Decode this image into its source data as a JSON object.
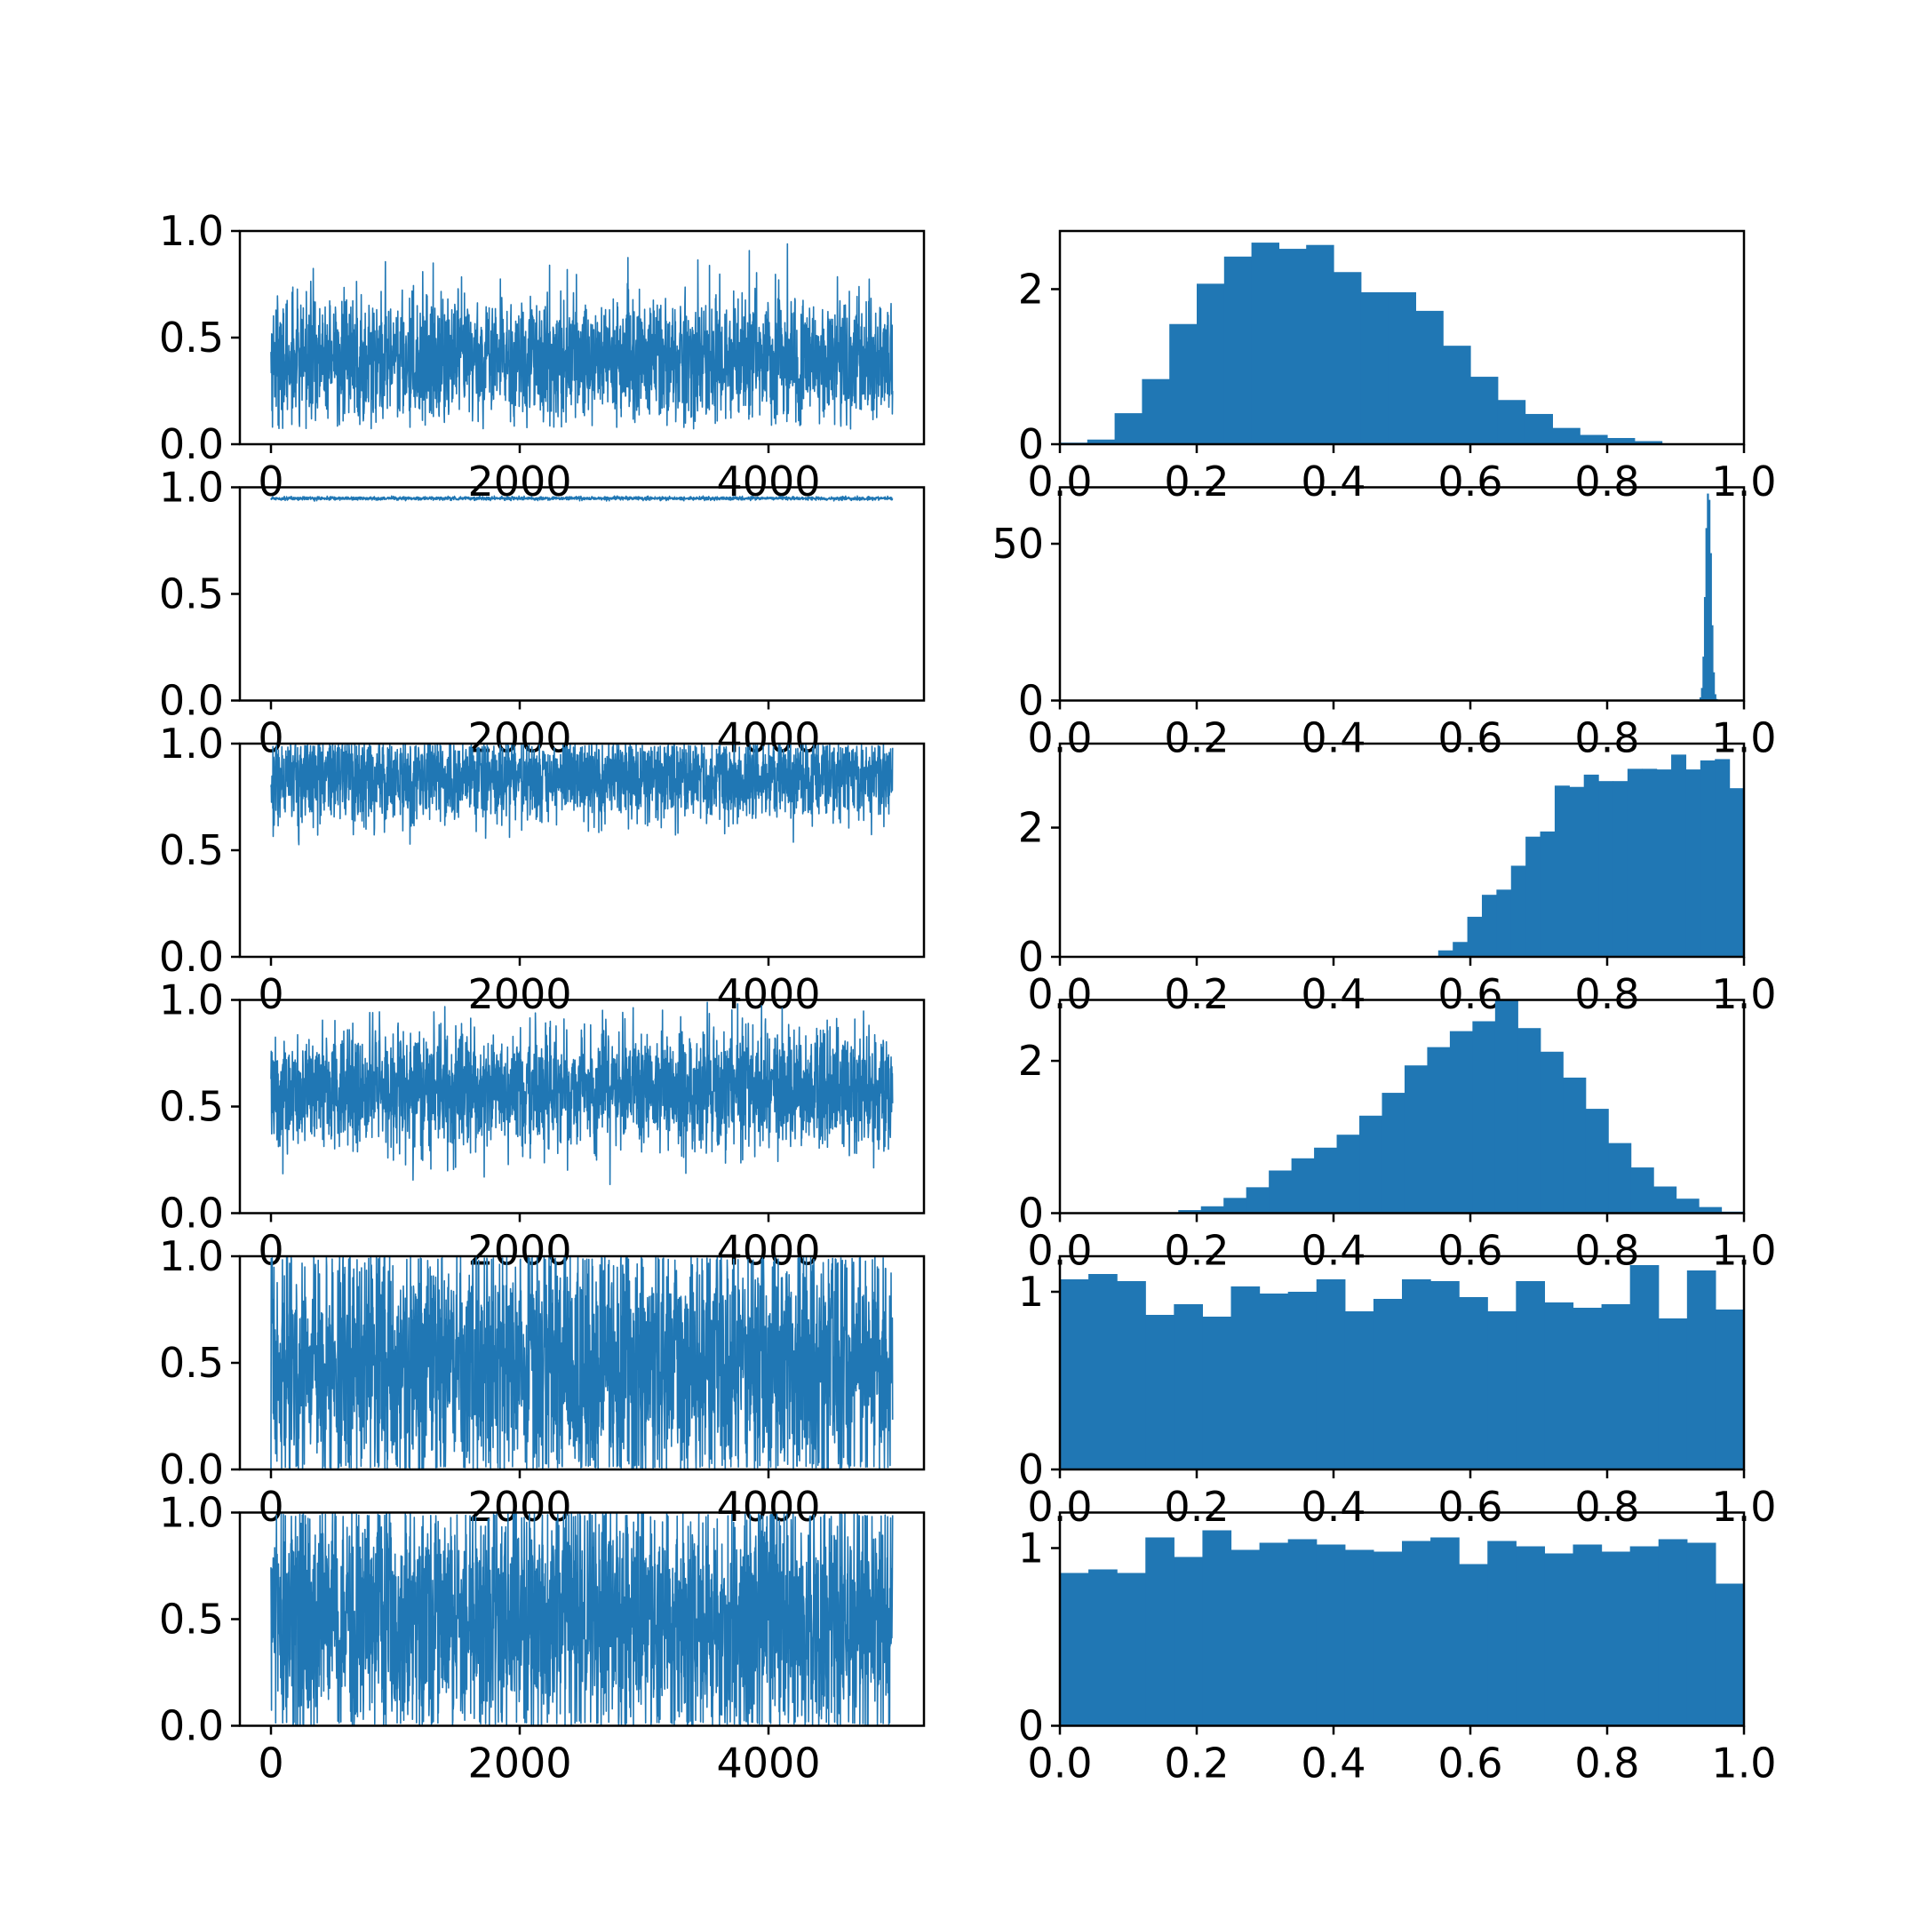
{
  "colors": {
    "series": "#2077b4",
    "axes": "#000000",
    "background": "#ffffff"
  },
  "chart_data": [
    {
      "type": "line",
      "panel": "trace-1",
      "xlim": [
        -250,
        5250
      ],
      "ylim": [
        0,
        1
      ],
      "xticks": [
        0,
        2000,
        4000
      ],
      "xtick_labels": [
        "0",
        "2000",
        "4000"
      ],
      "yticks": [
        0,
        0.5,
        1.0
      ],
      "ytick_labels": [
        "0.0",
        "0.5",
        "1.0"
      ],
      "n_samples": 5000,
      "band": [
        0.07,
        0.22,
        0.4,
        0.62,
        0.99
      ],
      "sd": 0.15
    },
    {
      "type": "bar",
      "panel": "hist-1",
      "xlim": [
        0,
        1
      ],
      "ylim": [
        0,
        2.75
      ],
      "xticks": [
        0,
        0.2,
        0.4,
        0.6,
        0.8,
        1.0
      ],
      "xtick_labels": [
        "0.0",
        "0.2",
        "0.4",
        "0.6",
        "0.8",
        "1.0"
      ],
      "yticks": [
        0,
        2
      ],
      "ytick_labels": [
        "0",
        "2"
      ],
      "bin_range": [
        0.0,
        0.92
      ],
      "values": [
        0.02,
        0.06,
        0.4,
        0.84,
        1.55,
        2.07,
        2.42,
        2.6,
        2.52,
        2.57,
        2.22,
        1.96,
        1.96,
        1.72,
        1.27,
        0.87,
        0.57,
        0.39,
        0.21,
        0.12,
        0.08,
        0.04,
        0.01
      ]
    },
    {
      "type": "line",
      "panel": "trace-2",
      "xlim": [
        -250,
        5250
      ],
      "ylim": [
        0,
        1
      ],
      "xticks": [
        0,
        2000,
        4000
      ],
      "xtick_labels": [
        "0",
        "2000",
        "4000"
      ],
      "yticks": [
        0,
        0.5,
        1.0
      ],
      "ytick_labels": [
        "0.0",
        "0.5",
        "1.0"
      ],
      "n_samples": 5000,
      "band": [
        0.935,
        0.943,
        0.948,
        0.953,
        0.96
      ],
      "sd": 0.004
    },
    {
      "type": "bar",
      "panel": "hist-2",
      "xlim": [
        0,
        1
      ],
      "ylim": [
        0,
        68
      ],
      "xticks": [
        0,
        0.2,
        0.4,
        0.6,
        0.8,
        1.0
      ],
      "xtick_labels": [
        "0.0",
        "0.2",
        "0.4",
        "0.6",
        "0.8",
        "1.0"
      ],
      "yticks": [
        0,
        50
      ],
      "ytick_labels": [
        "0",
        "50"
      ],
      "bin_range": [
        0.935,
        0.961
      ],
      "values": [
        1,
        4,
        14,
        33,
        55,
        66,
        64,
        47,
        24,
        9,
        2,
        0.5
      ]
    },
    {
      "type": "line",
      "panel": "trace-3",
      "xlim": [
        -250,
        5250
      ],
      "ylim": [
        0,
        1
      ],
      "xticks": [
        0,
        2000,
        4000
      ],
      "xtick_labels": [
        "0",
        "2000",
        "4000"
      ],
      "yticks": [
        0,
        0.5,
        1.0
      ],
      "ytick_labels": [
        "0.0",
        "0.5",
        "1.0"
      ],
      "n_samples": 5000,
      "band": [
        0.52,
        0.62,
        0.84,
        0.98,
        1.0
      ],
      "sd": 0.1
    },
    {
      "type": "bar",
      "panel": "hist-3",
      "xlim": [
        0,
        1
      ],
      "ylim": [
        0,
        3.3
      ],
      "xticks": [
        0,
        0.2,
        0.4,
        0.6,
        0.8,
        1.0
      ],
      "xtick_labels": [
        "0.0",
        "0.2",
        "0.4",
        "0.6",
        "0.8",
        "1.0"
      ],
      "yticks": [
        0,
        2
      ],
      "ytick_labels": [
        "0",
        "2"
      ],
      "bin_range": [
        0.553,
        1.0
      ],
      "values": [
        0.1,
        0.23,
        0.62,
        0.96,
        1.04,
        1.41,
        1.86,
        1.94,
        2.65,
        2.63,
        2.82,
        2.72,
        2.72,
        2.91,
        2.91,
        2.9,
        3.13,
        2.9,
        3.04,
        3.06,
        2.61
      ]
    },
    {
      "type": "line",
      "panel": "trace-4",
      "xlim": [
        -250,
        5250
      ],
      "ylim": [
        0,
        1
      ],
      "xticks": [
        0,
        2000,
        4000
      ],
      "xtick_labels": [
        "0",
        "2000",
        "4000"
      ],
      "yticks": [
        0,
        0.5,
        1.0
      ],
      "ytick_labels": [
        "0.0",
        "0.5",
        "1.0"
      ],
      "n_samples": 5000,
      "band": [
        0.12,
        0.32,
        0.58,
        0.83,
        0.99
      ],
      "sd": 0.14
    },
    {
      "type": "bar",
      "panel": "hist-4",
      "xlim": [
        0,
        1
      ],
      "ylim": [
        0,
        2.8
      ],
      "xticks": [
        0,
        0.2,
        0.4,
        0.6,
        0.8,
        1.0
      ],
      "xtick_labels": [
        "0.0",
        "0.2",
        "0.4",
        "0.6",
        "0.8",
        "1.0"
      ],
      "yticks": [
        0,
        2
      ],
      "ytick_labels": [
        "0",
        "2"
      ],
      "bin_range": [
        0.14,
        1.0
      ],
      "values": [
        0.01,
        0.04,
        0.09,
        0.2,
        0.34,
        0.56,
        0.72,
        0.86,
        1.03,
        1.28,
        1.58,
        1.94,
        2.18,
        2.39,
        2.52,
        2.81,
        2.43,
        2.12,
        1.78,
        1.37,
        0.92,
        0.6,
        0.35,
        0.19,
        0.08,
        0.02
      ]
    },
    {
      "type": "line",
      "panel": "trace-5",
      "xlim": [
        -250,
        5250
      ],
      "ylim": [
        0,
        1
      ],
      "xticks": [
        0,
        2000,
        4000
      ],
      "xtick_labels": [
        "0",
        "2000",
        "4000"
      ],
      "yticks": [
        0,
        0.5,
        1.0
      ],
      "ytick_labels": [
        "0.0",
        "0.5",
        "1.0"
      ],
      "n_samples": 5000,
      "band": [
        0.0,
        0.02,
        0.5,
        0.98,
        1.0
      ],
      "sd": 0.3
    },
    {
      "type": "bar",
      "panel": "hist-5",
      "xlim": [
        0,
        1
      ],
      "ylim": [
        0,
        1.2
      ],
      "xticks": [
        0,
        0.2,
        0.4,
        0.6,
        0.8,
        1.0
      ],
      "xtick_labels": [
        "0.0",
        "0.2",
        "0.4",
        "0.6",
        "0.8",
        "1.0"
      ],
      "yticks": [
        0,
        1
      ],
      "ytick_labels": [
        "0",
        "1"
      ],
      "bin_range": [
        0.0,
        1.0
      ],
      "values": [
        1.07,
        1.1,
        1.06,
        0.87,
        0.93,
        0.86,
        1.03,
        0.99,
        1.0,
        1.07,
        0.89,
        0.96,
        1.07,
        1.06,
        0.97,
        0.89,
        1.06,
        0.94,
        0.91,
        0.93,
        1.15,
        0.85,
        1.12,
        0.9
      ]
    },
    {
      "type": "line",
      "panel": "trace-6",
      "xlim": [
        -250,
        5250
      ],
      "ylim": [
        0,
        1
      ],
      "xticks": [
        0,
        2000,
        4000
      ],
      "xtick_labels": [
        "0",
        "2000",
        "4000"
      ],
      "yticks": [
        0,
        0.5,
        1.0
      ],
      "ytick_labels": [
        "0.0",
        "0.5",
        "1.0"
      ],
      "n_samples": 5000,
      "band": [
        0.0,
        0.02,
        0.5,
        0.98,
        1.0
      ],
      "sd": 0.3
    },
    {
      "type": "bar",
      "panel": "hist-6",
      "xlim": [
        0,
        1
      ],
      "ylim": [
        0,
        1.2
      ],
      "xticks": [
        0,
        0.2,
        0.4,
        0.6,
        0.8,
        1.0
      ],
      "xtick_labels": [
        "0.0",
        "0.2",
        "0.4",
        "0.6",
        "0.8",
        "1.0"
      ],
      "yticks": [
        0,
        1
      ],
      "ytick_labels": [
        "0",
        "1"
      ],
      "bin_range": [
        0.0,
        1.0
      ],
      "values": [
        0.86,
        0.88,
        0.86,
        1.06,
        0.95,
        1.1,
        0.99,
        1.03,
        1.05,
        1.02,
        0.99,
        0.98,
        1.04,
        1.06,
        0.91,
        1.04,
        1.01,
        0.97,
        1.02,
        0.98,
        1.01,
        1.05,
        1.03,
        0.8
      ]
    }
  ]
}
